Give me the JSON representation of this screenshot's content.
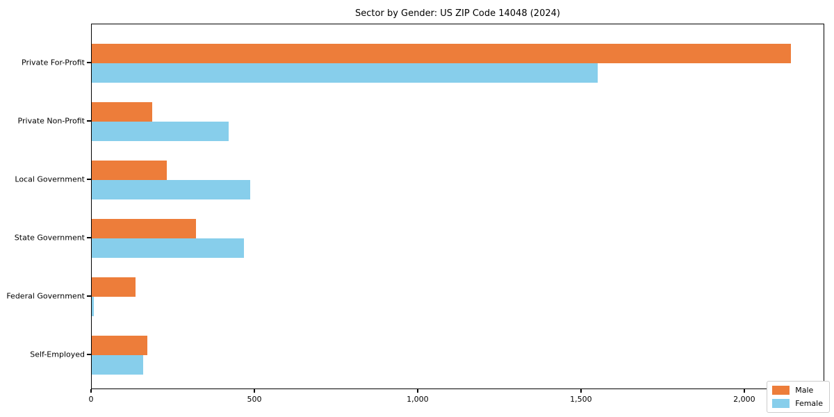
{
  "title": "Sector by Gender: US ZIP Code 14048 (2024)",
  "chart_data": {
    "type": "bar",
    "orientation": "horizontal",
    "title": "Sector by Gender: US ZIP Code 14048 (2024)",
    "categories": [
      "Private For-Profit",
      "Private Non-Profit",
      "Local Government",
      "State Government",
      "Federal Government",
      "Self-Employed"
    ],
    "series": [
      {
        "name": "Male",
        "color": "#ED7D3A",
        "values": [
          2140,
          185,
          230,
          320,
          135,
          170
        ]
      },
      {
        "name": "Female",
        "color": "#87CEEB",
        "values": [
          1550,
          420,
          485,
          465,
          7,
          158
        ]
      }
    ],
    "xlim": [
      0,
      2245
    ],
    "x_ticks": [
      0,
      500,
      1000,
      1500,
      2000
    ],
    "x_tick_labels": [
      "0",
      "500",
      "1,000",
      "1,500",
      "2,000"
    ],
    "xlabel": "",
    "ylabel": "",
    "grid": false,
    "legend_position": "lower right",
    "background": "#ffffff",
    "spine_color": "#000000"
  }
}
